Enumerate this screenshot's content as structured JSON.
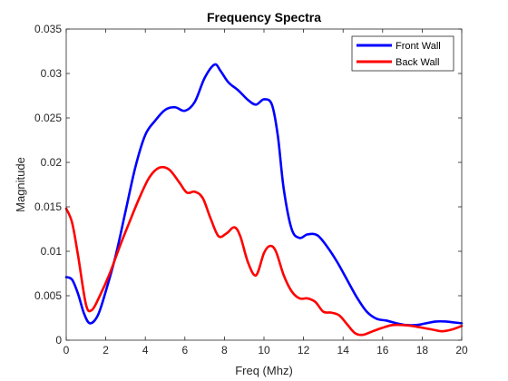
{
  "chart_data": {
    "type": "line",
    "title": "Frequency Spectra",
    "xlabel": "Freq (Mhz)",
    "ylabel": "Magnitude",
    "xlim": [
      0,
      20
    ],
    "ylim": [
      0,
      0.035
    ],
    "xticks": [
      0,
      2,
      4,
      6,
      8,
      10,
      12,
      14,
      16,
      18,
      20
    ],
    "xtick_labels": [
      "0",
      "2",
      "4",
      "6",
      "8",
      "10",
      "12",
      "14",
      "16",
      "18",
      "20"
    ],
    "yticks": [
      0,
      0.005,
      0.01,
      0.015,
      0.02,
      0.025,
      0.03,
      0.035
    ],
    "ytick_labels": [
      "0",
      "0.005",
      "0.01",
      "0.015",
      "0.02",
      "0.025",
      "0.03",
      "0.035"
    ],
    "grid": false,
    "legend_position": "top-right",
    "series": [
      {
        "name": "Front Wall",
        "color": "#0000ff",
        "x": [
          0,
          0.3,
          0.6,
          0.9,
          1.2,
          1.6,
          2.0,
          2.5,
          3.0,
          3.5,
          4.0,
          4.5,
          5.0,
          5.5,
          6.0,
          6.5,
          7.0,
          7.5,
          7.8,
          8.2,
          8.7,
          9.2,
          9.6,
          10.0,
          10.4,
          10.7,
          11.0,
          11.4,
          11.8,
          12.2,
          12.7,
          13.2,
          13.7,
          14.2,
          14.7,
          15.2,
          15.7,
          16.2,
          16.7,
          17.2,
          17.7,
          18.2,
          18.7,
          19.2,
          19.6,
          20.0
        ],
        "y": [
          0.0071,
          0.0068,
          0.0052,
          0.003,
          0.0019,
          0.0028,
          0.0055,
          0.0095,
          0.0145,
          0.0195,
          0.0231,
          0.0247,
          0.0259,
          0.0262,
          0.0258,
          0.0268,
          0.0295,
          0.031,
          0.0303,
          0.029,
          0.0281,
          0.027,
          0.0265,
          0.0271,
          0.0265,
          0.023,
          0.017,
          0.0125,
          0.0115,
          0.0119,
          0.0118,
          0.0105,
          0.0088,
          0.0068,
          0.0048,
          0.0032,
          0.0024,
          0.0022,
          0.0019,
          0.0017,
          0.0017,
          0.0019,
          0.0021,
          0.0021,
          0.002,
          0.0019
        ]
      },
      {
        "name": "Back Wall",
        "color": "#ff0000",
        "x": [
          0,
          0.3,
          0.6,
          1.0,
          1.3,
          1.7,
          2.2,
          2.7,
          3.2,
          3.7,
          4.2,
          4.7,
          5.2,
          5.7,
          6.1,
          6.5,
          6.9,
          7.3,
          7.7,
          8.1,
          8.5,
          8.8,
          9.2,
          9.6,
          10.0,
          10.3,
          10.6,
          11.0,
          11.4,
          11.8,
          12.2,
          12.6,
          13.0,
          13.4,
          13.8,
          14.2,
          14.6,
          15.0,
          15.5,
          16.0,
          16.5,
          17.0,
          17.5,
          18.0,
          18.5,
          19.0,
          19.5,
          20.0
        ],
        "y": [
          0.0148,
          0.0132,
          0.0095,
          0.004,
          0.0034,
          0.005,
          0.0075,
          0.0105,
          0.0133,
          0.016,
          0.0183,
          0.0194,
          0.0192,
          0.0178,
          0.0166,
          0.0167,
          0.016,
          0.0137,
          0.0117,
          0.012,
          0.0127,
          0.0117,
          0.0087,
          0.0073,
          0.0098,
          0.0106,
          0.01,
          0.0073,
          0.0055,
          0.0047,
          0.0047,
          0.0043,
          0.0032,
          0.0031,
          0.0028,
          0.0018,
          0.0008,
          0.0006,
          0.001,
          0.0014,
          0.0017,
          0.0017,
          0.0016,
          0.0014,
          0.0012,
          0.001,
          0.0012,
          0.0016
        ]
      }
    ]
  }
}
